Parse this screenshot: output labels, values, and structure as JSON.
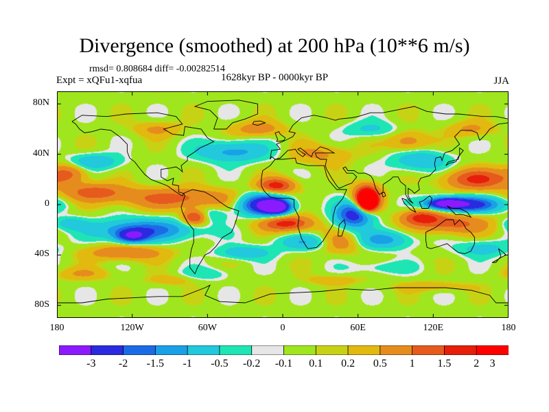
{
  "title": "Divergence (smoothed) at 200 hPa (10**6 m/s)",
  "stats": "rmsd= 0.808684  diff= -0.00282514",
  "expt": "Expt = xQFu1-xqfua",
  "period": "1628kyr BP - 0000kyr BP",
  "season": "JJA",
  "map": {
    "projection": "cylindrical equidistant",
    "lon_range": [
      -180,
      180
    ],
    "lat_range": [
      -90,
      90
    ],
    "lat_ticks": [
      {
        "label": "80N",
        "value": 80
      },
      {
        "label": "40N",
        "value": 40
      },
      {
        "label": "0",
        "value": 0
      },
      {
        "label": "40S",
        "value": -40
      },
      {
        "label": "80S",
        "value": -80
      }
    ],
    "lon_ticks": [
      {
        "label": "180",
        "value": -180
      },
      {
        "label": "120W",
        "value": -120
      },
      {
        "label": "60W",
        "value": -60
      },
      {
        "label": "0",
        "value": 0
      },
      {
        "label": "60E",
        "value": 60
      },
      {
        "label": "120E",
        "value": 120
      },
      {
        "label": "180",
        "value": 180
      }
    ]
  },
  "colorbar": {
    "colors": [
      "#8c1aff",
      "#2a2ae0",
      "#1c6be6",
      "#1aa0e6",
      "#22c8dc",
      "#1de6b4",
      "#e6e6e6",
      "#a0e61e",
      "#c8d214",
      "#e1b90f",
      "#e68c1e",
      "#e65a1e",
      "#e61e0a",
      "#ff0000"
    ],
    "labels": [
      "-3",
      "-2",
      "-1.5",
      "-1",
      "-0.5",
      "-0.2",
      "-0.1",
      "0.1",
      "0.2",
      "0.5",
      "1",
      "1.5",
      "2",
      "3"
    ]
  },
  "field_blobs": [
    {
      "lon": -15,
      "lat": 0,
      "rlon": 18,
      "rlat": 8,
      "v": -3
    },
    {
      "lon": -5,
      "lat": -2,
      "rlon": 10,
      "rlat": 5,
      "v": -3.5
    },
    {
      "lon": 57,
      "lat": -8,
      "rlon": 14,
      "rlat": 10,
      "v": -2.5
    },
    {
      "lon": 147,
      "lat": 0,
      "rlon": 26,
      "rlat": 6,
      "v": -2.5
    },
    {
      "lon": 130,
      "lat": 1,
      "rlon": 14,
      "rlat": 4,
      "v": -3
    },
    {
      "lon": -110,
      "lat": -20,
      "rlon": 38,
      "rlat": 8,
      "v": -1.8
    },
    {
      "lon": -120,
      "lat": -25,
      "rlon": 12,
      "rlat": 5,
      "v": -2.5
    },
    {
      "lon": -40,
      "lat": 42,
      "rlon": 28,
      "rlat": 8,
      "v": -1.2
    },
    {
      "lon": -150,
      "lat": 34,
      "rlon": 20,
      "rlat": 6,
      "v": -1
    },
    {
      "lon": 110,
      "lat": 35,
      "rlon": 22,
      "rlat": 8,
      "v": -1
    },
    {
      "lon": 20,
      "lat": -30,
      "rlon": 24,
      "rlat": 6,
      "v": -1
    },
    {
      "lon": 80,
      "lat": -28,
      "rlon": 22,
      "rlat": 7,
      "v": -1.2
    },
    {
      "lon": -30,
      "lat": -38,
      "rlon": 20,
      "rlat": 5,
      "v": -1
    },
    {
      "lon": -170,
      "lat": -15,
      "rlon": 14,
      "rlat": 5,
      "v": -0.8
    },
    {
      "lon": -60,
      "lat": -8,
      "rlon": 15,
      "rlat": 6,
      "v": -0.7
    },
    {
      "lon": 160,
      "lat": -35,
      "rlon": 20,
      "rlat": 6,
      "v": -0.8
    },
    {
      "lon": 70,
      "lat": 60,
      "rlon": 20,
      "rlat": 6,
      "v": -0.6
    },
    {
      "lon": 67,
      "lat": 5,
      "rlon": 10,
      "rlat": 10,
      "v": 3
    },
    {
      "lon": 68,
      "lat": 2,
      "rlon": 6,
      "rlat": 6,
      "v": 3.5
    },
    {
      "lon": -5,
      "lat": 15,
      "rlon": 14,
      "rlat": 6,
      "v": 1.8
    },
    {
      "lon": 3,
      "lat": -15,
      "rlon": 20,
      "rlat": 6,
      "v": 1.8
    },
    {
      "lon": -85,
      "lat": 5,
      "rlon": 45,
      "rlat": 8,
      "v": 1.2
    },
    {
      "lon": -70,
      "lat": -10,
      "rlon": 10,
      "rlat": 6,
      "v": 2
    },
    {
      "lon": -150,
      "lat": 10,
      "rlon": 25,
      "rlat": 7,
      "v": 1.2
    },
    {
      "lon": -170,
      "lat": 25,
      "rlon": 14,
      "rlat": 8,
      "v": 1
    },
    {
      "lon": -125,
      "lat": -38,
      "rlon": 30,
      "rlat": 6,
      "v": 1
    },
    {
      "lon": 155,
      "lat": 20,
      "rlon": 25,
      "rlat": 8,
      "v": 1.6
    },
    {
      "lon": 135,
      "lat": -15,
      "rlon": 30,
      "rlat": 8,
      "v": 1.2
    },
    {
      "lon": 110,
      "lat": -10,
      "rlon": 15,
      "rlat": 6,
      "v": 1.5
    },
    {
      "lon": 45,
      "lat": -30,
      "rlon": 18,
      "rlat": 8,
      "v": 1
    },
    {
      "lon": 100,
      "lat": 50,
      "rlon": 15,
      "rlat": 8,
      "v": 0.8
    },
    {
      "lon": -20,
      "lat": 60,
      "rlon": 20,
      "rlat": 6,
      "v": 0.8
    },
    {
      "lon": 30,
      "lat": 40,
      "rlon": 25,
      "rlat": 8,
      "v": 0.6
    },
    {
      "lon": -100,
      "lat": 60,
      "rlon": 18,
      "rlat": 6,
      "v": 0.6
    },
    {
      "lon": 150,
      "lat": 60,
      "rlon": 18,
      "rlat": 6,
      "v": 0.6
    },
    {
      "lon": -160,
      "lat": -55,
      "rlon": 22,
      "rlat": 5,
      "v": 0.5
    },
    {
      "lon": -90,
      "lat": -60,
      "rlon": 18,
      "rlat": 4,
      "v": 0.4
    },
    {
      "lon": 40,
      "lat": -60,
      "rlon": 22,
      "rlat": 4,
      "v": 0.4
    },
    {
      "lon": 120,
      "lat": -65,
      "rlon": 30,
      "rlat": 4,
      "v": 0.4
    },
    {
      "lon": 80,
      "lat": -50,
      "rlon": 25,
      "rlat": 5,
      "v": -0.4
    },
    {
      "lon": -60,
      "lat": -55,
      "rlon": 20,
      "rlat": 5,
      "v": -0.4
    }
  ]
}
